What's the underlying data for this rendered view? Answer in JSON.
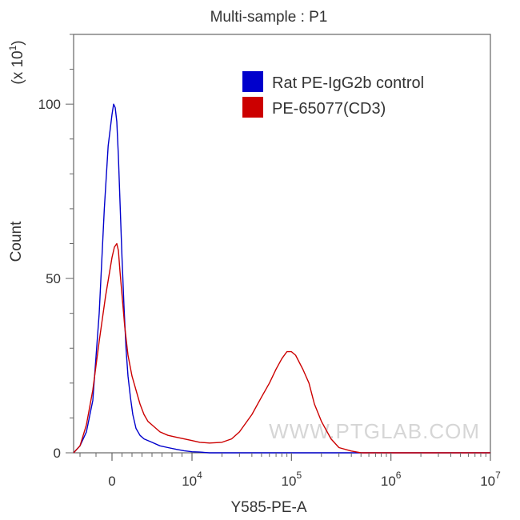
{
  "chart_data": {
    "type": "line",
    "title": "Multi-sample : P1",
    "xlabel": "Y585-PE-A",
    "ylabel": "Count",
    "y_multiplier_label": "(x 10",
    "y_multiplier_exp": "1",
    "y_multiplier_close": ")",
    "x_scale": "biexponential",
    "xlim": [
      -3000,
      10000000
    ],
    "ylim": [
      0,
      120
    ],
    "grid": false,
    "legend_position": "top-right",
    "x_ticks": [
      {
        "value": 0,
        "base": "0",
        "exp": ""
      },
      {
        "value": 10000,
        "base": "10",
        "exp": "4"
      },
      {
        "value": 100000,
        "base": "10",
        "exp": "5"
      },
      {
        "value": 1000000,
        "base": "10",
        "exp": "6"
      },
      {
        "value": 10000000,
        "base": "10",
        "exp": "7"
      }
    ],
    "y_ticks": [
      0,
      50,
      100
    ],
    "series": [
      {
        "name": "Rat PE-IgG2b control",
        "color": "#0000cc",
        "x": [
          -3000,
          -2500,
          -2000,
          -1500,
          -1000,
          -600,
          -300,
          0,
          200,
          400,
          600,
          800,
          1000,
          1250,
          1500,
          1750,
          2000,
          2300,
          2600,
          3000,
          3500,
          4000,
          5000,
          6000,
          7000,
          8000,
          9000,
          10000,
          12000,
          15000,
          20000,
          30000,
          100000,
          1000000,
          10000000
        ],
        "y": [
          0,
          2,
          6,
          15,
          40,
          70,
          88,
          97,
          100,
          99,
          95,
          85,
          72,
          56,
          42,
          30,
          22,
          16,
          11,
          7,
          5,
          4,
          3,
          2,
          1.5,
          1,
          0.6,
          0.3,
          0.2,
          0,
          0,
          0,
          0,
          0,
          0
        ]
      },
      {
        "name": "PE-65077(CD3)",
        "color": "#cc0000",
        "x": [
          -3000,
          -2500,
          -2000,
          -1500,
          -1000,
          -500,
          0,
          300,
          600,
          800,
          1000,
          1300,
          1600,
          2000,
          2500,
          3000,
          3500,
          4000,
          4500,
          5000,
          6000,
          7000,
          8000,
          9000,
          10000,
          12000,
          15000,
          20000,
          25000,
          30000,
          40000,
          50000,
          60000,
          70000,
          80000,
          90000,
          100000,
          110000,
          130000,
          150000,
          170000,
          200000,
          250000,
          300000,
          400000,
          500000,
          1000000,
          10000000
        ],
        "y": [
          0,
          2,
          8,
          18,
          32,
          45,
          56,
          59,
          60,
          58,
          52,
          44,
          36,
          28,
          22,
          18,
          14,
          11,
          9,
          8,
          6,
          5,
          4.5,
          4,
          3.5,
          3,
          2.8,
          3,
          4,
          6,
          11,
          16,
          20,
          24,
          27,
          29,
          29,
          28,
          24,
          20,
          14,
          9,
          4,
          1.5,
          0.5,
          0,
          0,
          0
        ]
      }
    ],
    "watermark": "WWW.PTGLAB.COM"
  }
}
